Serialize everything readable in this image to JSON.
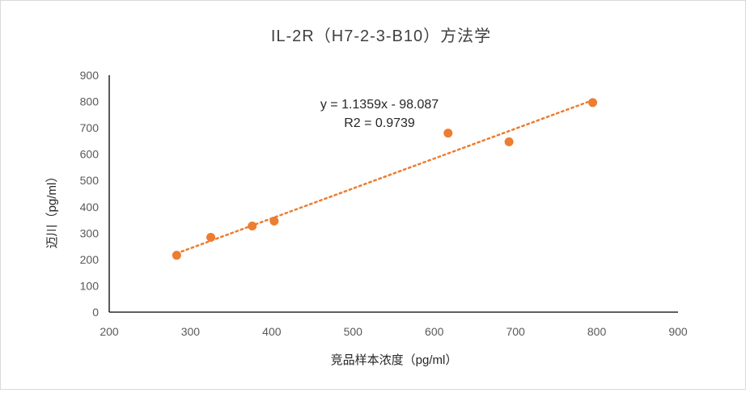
{
  "chart_data": {
    "type": "scatter",
    "title": "IL-2R（H7-2-3-B10）方法学",
    "xlabel": "竞品样本浓度（pg/ml）",
    "ylabel": "迈川（pg/ml）",
    "xlim": [
      200,
      900
    ],
    "ylim": [
      0,
      900
    ],
    "x_ticks": [
      "200",
      "300",
      "400",
      "500",
      "600",
      "700",
      "800",
      "900"
    ],
    "y_ticks": [
      "0",
      "100",
      "200",
      "300",
      "400",
      "500",
      "600",
      "700",
      "800",
      "900"
    ],
    "grid": false,
    "series": [
      {
        "points": [
          {
            "x": 283,
            "y": 216
          },
          {
            "x": 325,
            "y": 284
          },
          {
            "x": 376,
            "y": 327
          },
          {
            "x": 403,
            "y": 346
          },
          {
            "x": 617,
            "y": 680
          },
          {
            "x": 692,
            "y": 647
          },
          {
            "x": 795,
            "y": 796
          }
        ]
      }
    ],
    "trendline": {
      "type": "linear",
      "slope": 1.1359,
      "intercept": -98.087,
      "x_range": [
        283,
        795
      ],
      "equation": "y = 1.1359x - 98.087",
      "r2_label": "R2 = 0.9739"
    },
    "colors": {
      "marker": "#ED7D31",
      "trendline": "#ED7D31",
      "axis": "#000000"
    }
  }
}
